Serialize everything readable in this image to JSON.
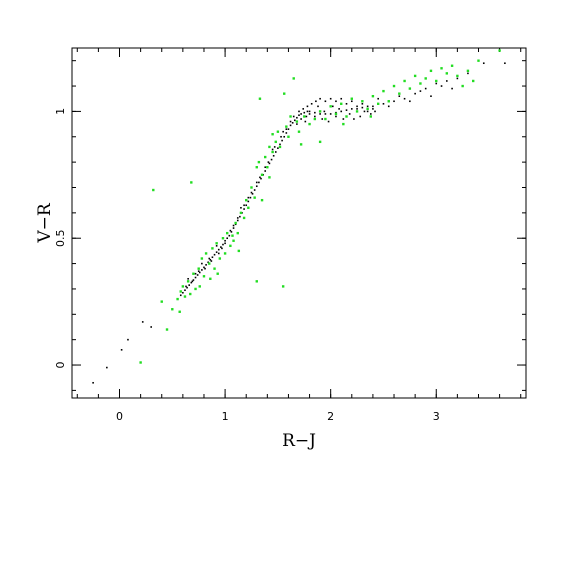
{
  "chart_data": {
    "type": "scatter",
    "title": "",
    "xlabel": "R−J",
    "ylabel": "V−R",
    "xlim": [
      -0.45,
      3.85
    ],
    "ylim": [
      -0.13,
      1.25
    ],
    "grid": false,
    "legend": "none",
    "x_ticks": [
      {
        "value": 0,
        "label": "0"
      },
      {
        "value": 1,
        "label": "1"
      },
      {
        "value": 2,
        "label": "2"
      },
      {
        "value": 3,
        "label": "3"
      }
    ],
    "y_ticks": [
      {
        "value": 0,
        "label": "0"
      },
      {
        "value": 0.5,
        "label": "0.5"
      },
      {
        "value": 1,
        "label": "1"
      }
    ],
    "x_minor_step": 0.2,
    "y_minor_step": 0.1,
    "colors": {
      "series_black": "#000000",
      "series_green": "#22dd22"
    },
    "series": [
      {
        "color": "#000000",
        "points": [
          [
            -0.25,
            -0.07
          ],
          [
            -0.12,
            -0.01
          ],
          [
            0.02,
            0.06
          ],
          [
            0.08,
            0.1
          ],
          [
            0.22,
            0.17
          ],
          [
            0.3,
            0.15
          ],
          [
            0.55,
            0.26
          ],
          [
            0.58,
            0.275
          ],
          [
            0.6,
            0.285
          ],
          [
            0.62,
            0.295
          ],
          [
            0.64,
            0.305
          ],
          [
            0.66,
            0.315
          ],
          [
            0.68,
            0.325
          ],
          [
            0.7,
            0.335
          ],
          [
            0.72,
            0.345
          ],
          [
            0.74,
            0.355
          ],
          [
            0.76,
            0.365
          ],
          [
            0.78,
            0.375
          ],
          [
            0.8,
            0.385
          ],
          [
            0.82,
            0.395
          ],
          [
            0.84,
            0.405
          ],
          [
            0.86,
            0.415
          ],
          [
            0.88,
            0.425
          ],
          [
            0.9,
            0.435
          ],
          [
            0.92,
            0.445
          ],
          [
            0.94,
            0.455
          ],
          [
            0.96,
            0.465
          ],
          [
            0.98,
            0.475
          ],
          [
            1.0,
            0.49
          ],
          [
            1.02,
            0.5
          ],
          [
            1.04,
            0.51
          ],
          [
            1.06,
            0.525
          ],
          [
            1.08,
            0.54
          ],
          [
            1.1,
            0.555
          ],
          [
            1.12,
            0.57
          ],
          [
            1.14,
            0.585
          ],
          [
            1.16,
            0.6
          ],
          [
            1.18,
            0.615
          ],
          [
            1.2,
            0.63
          ],
          [
            1.22,
            0.645
          ],
          [
            1.24,
            0.66
          ],
          [
            1.26,
            0.675
          ],
          [
            1.28,
            0.69
          ],
          [
            1.3,
            0.705
          ],
          [
            1.32,
            0.72
          ],
          [
            1.34,
            0.735
          ],
          [
            1.36,
            0.75
          ],
          [
            1.38,
            0.765
          ],
          [
            1.4,
            0.78
          ],
          [
            1.42,
            0.795
          ],
          [
            1.44,
            0.81
          ],
          [
            1.46,
            0.825
          ],
          [
            1.48,
            0.84
          ],
          [
            1.5,
            0.855
          ],
          [
            1.52,
            0.87
          ],
          [
            1.54,
            0.885
          ],
          [
            1.56,
            0.9
          ],
          [
            1.58,
            0.915
          ],
          [
            1.6,
            0.93
          ],
          [
            1.62,
            0.945
          ],
          [
            1.64,
            0.955
          ],
          [
            1.66,
            0.965
          ],
          [
            1.68,
            0.975
          ],
          [
            1.7,
            0.985
          ],
          [
            1.72,
            0.99
          ],
          [
            1.75,
            0.995
          ],
          [
            1.78,
            1.0
          ],
          [
            1.8,
            1.0
          ],
          [
            1.85,
            0.995
          ],
          [
            1.9,
            0.99
          ],
          [
            1.95,
            0.99
          ],
          [
            2.0,
            0.99
          ],
          [
            2.05,
            0.995
          ],
          [
            2.1,
            1.0
          ],
          [
            2.15,
            1.005
          ],
          [
            2.2,
            1.01
          ],
          [
            2.25,
            1.01
          ],
          [
            2.3,
            1.015
          ],
          [
            2.35,
            1.02
          ],
          [
            2.4,
            1.02
          ],
          [
            2.5,
            1.03
          ],
          [
            2.6,
            1.04
          ],
          [
            2.7,
            1.05
          ],
          [
            2.8,
            1.07
          ],
          [
            2.9,
            1.09
          ],
          [
            3.0,
            1.11
          ],
          [
            3.1,
            1.12
          ],
          [
            3.2,
            1.13
          ],
          [
            3.3,
            1.15
          ],
          [
            3.45,
            1.19
          ],
          [
            3.65,
            1.19
          ],
          [
            0.65,
            0.34
          ],
          [
            0.72,
            0.36
          ],
          [
            0.78,
            0.4
          ],
          [
            0.85,
            0.42
          ],
          [
            0.92,
            0.47
          ],
          [
            0.97,
            0.46
          ],
          [
            1.05,
            0.53
          ],
          [
            1.12,
            0.58
          ],
          [
            1.18,
            0.63
          ],
          [
            1.25,
            0.68
          ],
          [
            1.33,
            0.74
          ],
          [
            1.41,
            0.8
          ],
          [
            1.47,
            0.86
          ],
          [
            1.53,
            0.9
          ],
          [
            1.58,
            0.93
          ],
          [
            1.62,
            0.96
          ],
          [
            1.65,
            0.98
          ],
          [
            1.7,
            1.0
          ],
          [
            1.74,
            1.01
          ],
          [
            1.78,
            1.02
          ],
          [
            1.82,
            1.03
          ],
          [
            1.86,
            1.04
          ],
          [
            1.9,
            1.05
          ],
          [
            1.95,
            1.04
          ],
          [
            2.0,
            1.05
          ],
          [
            2.05,
            1.04
          ],
          [
            2.1,
            1.05
          ],
          [
            2.15,
            1.03
          ],
          [
            2.2,
            1.04
          ],
          [
            2.25,
            1.02
          ],
          [
            2.3,
            1.03
          ],
          [
            2.35,
            1.0
          ],
          [
            2.4,
            1.01
          ],
          [
            1.85,
            0.98
          ],
          [
            1.92,
            0.97
          ],
          [
            1.98,
            0.96
          ],
          [
            2.05,
            0.98
          ],
          [
            2.12,
            0.97
          ],
          [
            2.18,
            0.99
          ],
          [
            2.22,
            0.97
          ],
          [
            2.28,
            0.98
          ],
          [
            1.68,
            0.95
          ],
          [
            1.72,
            0.97
          ],
          [
            1.76,
            0.96
          ],
          [
            2.45,
            1.05
          ],
          [
            2.55,
            1.02
          ],
          [
            2.65,
            1.06
          ],
          [
            2.75,
            1.04
          ],
          [
            2.85,
            1.08
          ],
          [
            2.95,
            1.06
          ],
          [
            3.05,
            1.1
          ],
          [
            3.15,
            1.09
          ],
          [
            1.6,
            0.9
          ],
          [
            1.55,
            0.92
          ],
          [
            1.45,
            0.85
          ],
          [
            1.38,
            0.78
          ],
          [
            1.3,
            0.72
          ],
          [
            1.22,
            0.66
          ],
          [
            1.15,
            0.62
          ],
          [
            1.08,
            0.55
          ],
          [
            1.0,
            0.48
          ],
          [
            0.94,
            0.44
          ],
          [
            0.87,
            0.41
          ],
          [
            0.81,
            0.38
          ],
          [
            0.75,
            0.37
          ],
          [
            0.69,
            0.33
          ],
          [
            0.63,
            0.31
          ],
          [
            1.88,
            1.02
          ],
          [
            2.02,
            1.02
          ],
          [
            2.08,
            1.01
          ],
          [
            2.32,
            1.0
          ],
          [
            2.38,
            0.99
          ],
          [
            2.42,
            1.0
          ],
          [
            1.94,
            1.0
          ],
          [
            1.8,
            0.99
          ],
          [
            1.77,
            0.98
          ]
        ]
      },
      {
        "color": "#22dd22",
        "points": [
          [
            0.2,
            0.01
          ],
          [
            0.32,
            0.69
          ],
          [
            0.4,
            0.25
          ],
          [
            0.45,
            0.14
          ],
          [
            0.55,
            0.26
          ],
          [
            0.58,
            0.29
          ],
          [
            0.6,
            0.31
          ],
          [
            0.62,
            0.27
          ],
          [
            0.65,
            0.33
          ],
          [
            0.67,
            0.28
          ],
          [
            0.68,
            0.72
          ],
          [
            0.7,
            0.36
          ],
          [
            0.72,
            0.3
          ],
          [
            0.75,
            0.38
          ],
          [
            0.78,
            0.42
          ],
          [
            0.8,
            0.35
          ],
          [
            0.82,
            0.44
          ],
          [
            0.85,
            0.4
          ],
          [
            0.88,
            0.46
          ],
          [
            0.9,
            0.38
          ],
          [
            0.92,
            0.48
          ],
          [
            0.95,
            0.42
          ],
          [
            0.98,
            0.5
          ],
          [
            1.0,
            0.44
          ],
          [
            1.02,
            0.52
          ],
          [
            1.05,
            0.47
          ],
          [
            1.08,
            0.49
          ],
          [
            1.1,
            0.56
          ],
          [
            1.12,
            0.52
          ],
          [
            1.15,
            0.6
          ],
          [
            1.18,
            0.58
          ],
          [
            1.2,
            0.65
          ],
          [
            1.22,
            0.62
          ],
          [
            1.25,
            0.7
          ],
          [
            1.28,
            0.66
          ],
          [
            1.3,
            0.33
          ],
          [
            1.32,
            0.8
          ],
          [
            1.33,
            1.05
          ],
          [
            1.35,
            0.75
          ],
          [
            1.38,
            0.82
          ],
          [
            1.4,
            0.78
          ],
          [
            1.42,
            0.86
          ],
          [
            1.45,
            0.84
          ],
          [
            1.48,
            0.88
          ],
          [
            1.5,
            0.92
          ],
          [
            1.52,
            0.86
          ],
          [
            1.55,
            0.31
          ],
          [
            1.56,
            1.07
          ],
          [
            1.58,
            0.94
          ],
          [
            1.6,
            0.9
          ],
          [
            1.62,
            0.98
          ],
          [
            1.65,
            1.13
          ],
          [
            1.68,
            0.96
          ],
          [
            1.7,
            0.92
          ],
          [
            1.75,
            0.98
          ],
          [
            1.8,
            0.95
          ],
          [
            1.85,
            0.97
          ],
          [
            1.9,
            1.0
          ],
          [
            1.95,
            0.97
          ],
          [
            2.0,
            1.02
          ],
          [
            2.05,
            0.99
          ],
          [
            2.1,
            1.03
          ],
          [
            2.15,
            0.98
          ],
          [
            2.2,
            1.05
          ],
          [
            2.25,
            1.0
          ],
          [
            2.3,
            1.04
          ],
          [
            2.35,
            1.01
          ],
          [
            2.4,
            1.06
          ],
          [
            2.45,
            1.03
          ],
          [
            2.5,
            1.08
          ],
          [
            2.55,
            1.04
          ],
          [
            2.6,
            1.1
          ],
          [
            2.65,
            1.07
          ],
          [
            2.7,
            1.12
          ],
          [
            2.75,
            1.09
          ],
          [
            2.8,
            1.14
          ],
          [
            2.85,
            1.11
          ],
          [
            2.9,
            1.13
          ],
          [
            2.95,
            1.16
          ],
          [
            3.0,
            1.12
          ],
          [
            3.05,
            1.17
          ],
          [
            3.1,
            1.15
          ],
          [
            3.15,
            1.18
          ],
          [
            3.2,
            1.14
          ],
          [
            3.25,
            1.1
          ],
          [
            3.3,
            1.16
          ],
          [
            3.35,
            1.12
          ],
          [
            3.4,
            1.2
          ],
          [
            3.6,
            1.24
          ],
          [
            1.9,
            0.88
          ],
          [
            1.3,
            0.78
          ],
          [
            1.35,
            0.65
          ],
          [
            0.5,
            0.22
          ],
          [
            0.57,
            0.21
          ],
          [
            1.42,
            0.74
          ],
          [
            1.07,
            0.51
          ],
          [
            0.93,
            0.36
          ],
          [
            0.86,
            0.34
          ],
          [
            0.76,
            0.31
          ],
          [
            1.13,
            0.45
          ],
          [
            1.45,
            0.91
          ],
          [
            2.38,
            0.98
          ],
          [
            1.72,
            0.87
          ],
          [
            2.12,
            0.95
          ]
        ]
      }
    ]
  }
}
